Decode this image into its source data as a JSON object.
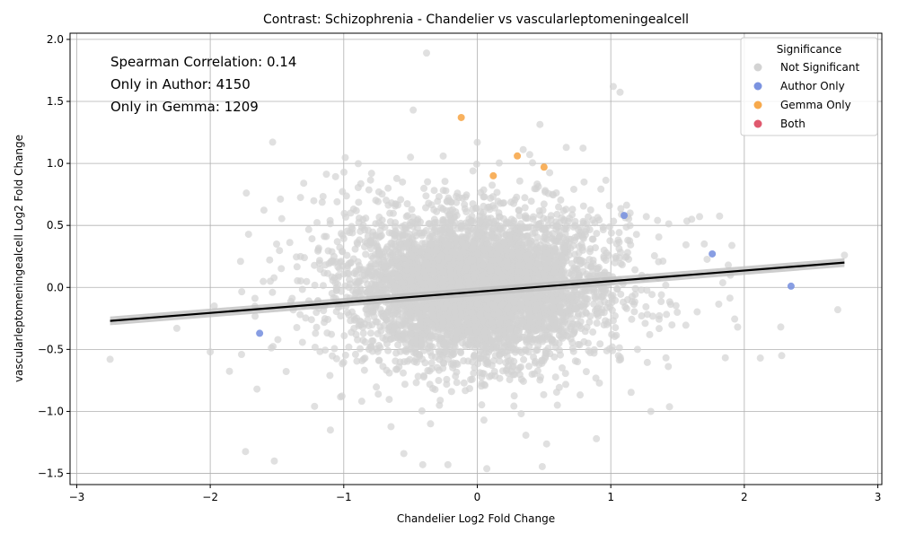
{
  "chart_data": {
    "type": "scatter",
    "title": "Contrast: Schizophrenia - Chandelier vs vascularleptomeningealcell",
    "xlabel": "Chandelier Log2 Fold Change",
    "ylabel": "vascularleptomeningealcell Log2 Fold Change",
    "xlim": [
      -3.05,
      3.03
    ],
    "ylim": [
      -1.59,
      2.05
    ],
    "xticks": [
      -3,
      -2,
      -1,
      0,
      1,
      2,
      3
    ],
    "xtick_labels": [
      "−3",
      "−2",
      "−1",
      "0",
      "1",
      "2",
      "3"
    ],
    "yticks": [
      -1.5,
      -1.0,
      -0.5,
      0.0,
      0.5,
      1.0,
      1.5,
      2.0
    ],
    "ytick_labels": [
      "−1.5",
      "−1.0",
      "−0.5",
      "0.0",
      "0.5",
      "1.0",
      "1.5",
      "2.0"
    ],
    "grid": true,
    "annotations": [
      "Spearman Correlation: 0.14",
      "Only in Author: 4150",
      "Only in Gemma: 1209"
    ],
    "legend": {
      "title": "Significance",
      "position": "top-right",
      "entries": [
        {
          "label": "Not Significant",
          "color": "#d3d3d3"
        },
        {
          "label": "Author Only",
          "color": "#7b93e0"
        },
        {
          "label": "Gemma Only",
          "color": "#f7a94c"
        },
        {
          "label": "Both",
          "color": "#e0596e"
        }
      ]
    },
    "regression": {
      "x": [
        -2.75,
        2.75
      ],
      "y": [
        -0.27,
        0.2
      ],
      "color": "#000000",
      "band_color": "#c0c0c0"
    },
    "series": [
      {
        "name": "Not Significant",
        "color": "#d3d3d3",
        "cloud": {
          "center_x": 0.0,
          "center_y": 0.0,
          "sd_x": 0.45,
          "sd_y": 0.28,
          "count": 5200
        },
        "points": [
          {
            "x": -2.75,
            "y": -0.58
          },
          {
            "x": -2.25,
            "y": -0.33
          },
          {
            "x": -2.0,
            "y": -0.52
          },
          {
            "x": -1.97,
            "y": -0.15
          },
          {
            "x": -1.65,
            "y": -0.82
          },
          {
            "x": -1.55,
            "y": 0.05
          },
          {
            "x": -1.52,
            "y": -1.4
          },
          {
            "x": -1.3,
            "y": 0.84
          },
          {
            "x": -1.1,
            "y": -1.15
          },
          {
            "x": -0.55,
            "y": -1.34
          },
          {
            "x": -0.5,
            "y": 1.05
          },
          {
            "x": -0.48,
            "y": 1.43
          },
          {
            "x": -0.38,
            "y": 1.89
          },
          {
            "x": -0.22,
            "y": -1.43
          },
          {
            "x": 0.0,
            "y": 1.17
          },
          {
            "x": 0.05,
            "y": -1.07
          },
          {
            "x": 0.8,
            "y": 0.85
          },
          {
            "x": 1.3,
            "y": -1.0
          },
          {
            "x": 1.95,
            "y": -0.32
          },
          {
            "x": 2.12,
            "y": -0.57
          },
          {
            "x": 2.28,
            "y": -0.55
          },
          {
            "x": 2.7,
            "y": -0.18
          },
          {
            "x": 2.75,
            "y": 0.26
          },
          {
            "x": 1.7,
            "y": 0.35
          },
          {
            "x": 1.88,
            "y": 0.18
          },
          {
            "x": 1.35,
            "y": 0.54
          },
          {
            "x": -1.05,
            "y": 0.69
          },
          {
            "x": -0.35,
            "y": -1.1
          },
          {
            "x": 0.6,
            "y": -0.95
          },
          {
            "x": 1.2,
            "y": -0.5
          }
        ]
      },
      {
        "name": "Author Only",
        "color": "#7b93e0",
        "points": [
          {
            "x": 1.1,
            "y": 0.58
          },
          {
            "x": 1.76,
            "y": 0.27
          },
          {
            "x": 2.35,
            "y": 0.01
          },
          {
            "x": -1.63,
            "y": -0.37
          }
        ]
      },
      {
        "name": "Gemma Only",
        "color": "#f7a94c",
        "points": [
          {
            "x": -0.12,
            "y": 1.37
          },
          {
            "x": 0.3,
            "y": 1.06
          },
          {
            "x": 0.5,
            "y": 0.97
          },
          {
            "x": 0.12,
            "y": 0.9
          }
        ]
      },
      {
        "name": "Both",
        "color": "#e0596e",
        "points": []
      }
    ]
  }
}
